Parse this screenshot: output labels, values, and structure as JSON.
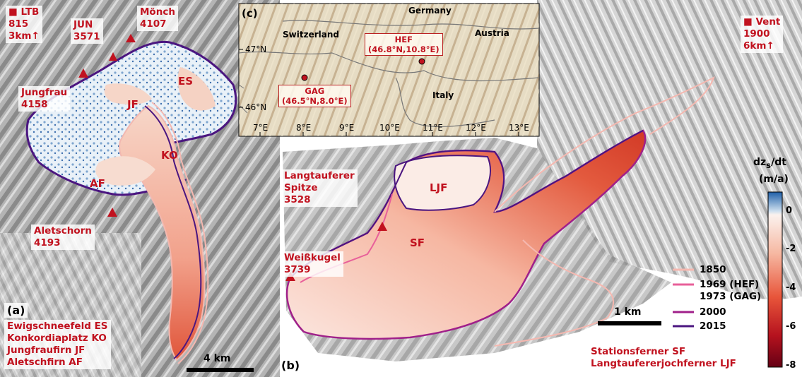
{
  "panel_a": {
    "tag": "(a)",
    "station": {
      "label": "■ LTB\n815\n3km↑"
    },
    "peaks": [
      {
        "id": "jun",
        "label": "JUN\n3571"
      },
      {
        "id": "moench",
        "label": "Mönch\n4107"
      },
      {
        "id": "jungfrau",
        "label": "Jungfrau\n4158"
      },
      {
        "id": "aletschorn",
        "label": "Aletschorn\n4193"
      }
    ],
    "features": [
      {
        "id": "es",
        "label": "ES"
      },
      {
        "id": "jf",
        "label": "JF"
      },
      {
        "id": "ko",
        "label": "KO"
      },
      {
        "id": "af",
        "label": "AF"
      }
    ],
    "legend": [
      "Ewigschneefeld ES",
      "Konkordiaplatz KO",
      "Jungfraufirn JF",
      "Aletschfirn AF"
    ],
    "scalebar": "4 km"
  },
  "panel_b": {
    "tag": "(b)",
    "station": {
      "label": "■ Vent\n1900\n6km↑"
    },
    "peaks": [
      {
        "id": "langtauferer",
        "label": "Langtauferer\nSpitze\n3528"
      },
      {
        "id": "weisskugel",
        "label": "Weißkugel\n3739"
      }
    ],
    "features": [
      {
        "id": "ljf",
        "label": "LJF"
      },
      {
        "id": "sf",
        "label": "SF"
      }
    ],
    "legend": [
      "Stationsferner SF",
      "Langtaufererjochferner LJF"
    ],
    "scalebar": "1 km",
    "outline_legend": [
      {
        "label": "1850",
        "color": "#f5b8b0"
      },
      {
        "label": "1969 (HEF)\n1973 (GAG)",
        "color": "#e8609a"
      },
      {
        "label": "2000",
        "color": "#a0208a"
      },
      {
        "label": "2015",
        "color": "#4b1680"
      }
    ]
  },
  "panel_c": {
    "tag": "(c)",
    "countries": [
      "Germany",
      "Switzerland",
      "Austria",
      "Italy"
    ],
    "sites": [
      {
        "id": "hef",
        "label": "HEF\n(46.8°N,10.8°E)"
      },
      {
        "id": "gag",
        "label": "GAG\n(46.5°N,8.0°E)"
      }
    ],
    "lat_ticks": [
      "47°N",
      "46°N"
    ],
    "lon_ticks": [
      "7°E",
      "8°E",
      "9°E",
      "10°E",
      "11°E",
      "12°E",
      "13°E"
    ]
  },
  "colorbar": {
    "title_html": "dz<sub>s</sub>/dt",
    "unit": "(m/a)",
    "ticks": [
      "0",
      "-2",
      "-4",
      "-6",
      "-8"
    ],
    "colors": [
      "#1f5fa8",
      "#fbf2ee",
      "#f3a48b",
      "#e0442f",
      "#650014"
    ]
  }
}
